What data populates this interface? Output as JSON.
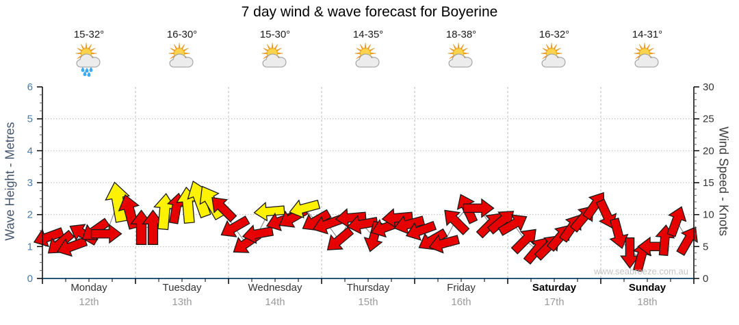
{
  "title": "7 day wind & wave forecast for Boyerine",
  "watermark": "www.seabreeze.com.au",
  "days": [
    {
      "name": "Monday",
      "date": "12th",
      "temp": "15-32°",
      "icon": "sun-cloud-rain",
      "weekend": false
    },
    {
      "name": "Tuesday",
      "date": "13th",
      "temp": "16-30°",
      "icon": "sun-cloud",
      "weekend": false
    },
    {
      "name": "Wednesday",
      "date": "14th",
      "temp": "15-30°",
      "icon": "sun-cloud",
      "weekend": false
    },
    {
      "name": "Thursday",
      "date": "15th",
      "temp": "14-35°",
      "icon": "sun-cloud",
      "weekend": false
    },
    {
      "name": "Friday",
      "date": "16th",
      "temp": "18-38°",
      "icon": "sun-cloud",
      "weekend": false
    },
    {
      "name": "Saturday",
      "date": "17th",
      "temp": "16-32°",
      "icon": "sun-cloud",
      "weekend": true
    },
    {
      "name": "Sunday",
      "date": "18th",
      "temp": "14-31°",
      "icon": "sun-cloud",
      "weekend": true
    }
  ],
  "axes": {
    "wave": {
      "title": "Wave Height - Metres",
      "min": 0,
      "max": 6,
      "major_ticks": [
        0,
        1,
        2,
        3,
        4,
        5,
        6
      ],
      "minor_step": 0.25
    },
    "wind": {
      "title": "Wind Speed - Knots",
      "min": 0,
      "max": 30,
      "major_ticks": [
        0,
        5,
        10,
        15,
        20,
        25,
        30
      ],
      "minor_step": 1
    }
  },
  "colors": {
    "arrow_red": "#e60000",
    "arrow_yellow": "#fff200",
    "arrow_outline": "#1a1a1a",
    "speed_line": "#8c8c8c",
    "grid": "#b8b8b8",
    "x_axis_line": "#27597d",
    "side_axis_line": "#000000",
    "wave_tick_text": "#4878a8",
    "wind_tick_text": "#333333",
    "watermark_text": "#c4c4c4"
  },
  "chart_data": {
    "type": "wind-arrow-timeseries",
    "title": "7 day wind & wave forecast for Boyerine",
    "categories": [
      "Monday 12th",
      "Tuesday 13th",
      "Wednesday 14th",
      "Thursday 15th",
      "Friday 16th",
      "Saturday 17th",
      "Sunday 18th"
    ],
    "arrows_per_day": 8,
    "ylabel_left": "Wave Height - Metres",
    "ylabel_right": "Wind Speed - Knots",
    "ylim_left": [
      0,
      6
    ],
    "ylim_right": [
      0,
      30
    ],
    "grid": "dotted horizontal at each metre, dashed vertical at day boundaries",
    "legend_note": "arrow position = wind speed in knots, arrow rotation = wind direction (0 = up/N, 90 = right/E), colour red or yellow",
    "arrows": [
      {
        "kn": 6.5,
        "dir": 250,
        "c": "red"
      },
      {
        "kn": 5.5,
        "dir": 230,
        "c": "red"
      },
      {
        "kn": 5.0,
        "dir": 250,
        "c": "red"
      },
      {
        "kn": 7.0,
        "dir": 300,
        "c": "red"
      },
      {
        "kn": 7.5,
        "dir": 235,
        "c": "red"
      },
      {
        "kn": 7.0,
        "dir": 90,
        "c": "red"
      },
      {
        "kn": 12.0,
        "dir": 350,
        "c": "yellow",
        "len": 58
      },
      {
        "kn": 10.5,
        "dir": 345,
        "c": "red",
        "len": 50
      },
      {
        "kn": 8.0,
        "dir": 0,
        "c": "red",
        "len": 50
      },
      {
        "kn": 8.0,
        "dir": 0,
        "c": "red",
        "len": 50
      },
      {
        "kn": 10.5,
        "dir": 5,
        "c": "yellow",
        "len": 52
      },
      {
        "kn": 11.0,
        "dir": 10,
        "c": "red"
      },
      {
        "kn": 11.5,
        "dir": 355,
        "c": "yellow",
        "len": 52
      },
      {
        "kn": 12.5,
        "dir": 340,
        "c": "yellow",
        "len": 54
      },
      {
        "kn": 12.0,
        "dir": 330,
        "c": "yellow",
        "len": 52
      },
      {
        "kn": 11.0,
        "dir": 315,
        "c": "red"
      },
      {
        "kn": 8.0,
        "dir": 240,
        "c": "red"
      },
      {
        "kn": 5.5,
        "dir": 235,
        "c": "red"
      },
      {
        "kn": 7.0,
        "dir": 260,
        "c": "red"
      },
      {
        "kn": 10.5,
        "dir": 265,
        "c": "yellow"
      },
      {
        "kn": 9.0,
        "dir": 250,
        "c": "red"
      },
      {
        "kn": 9.5,
        "dir": 240,
        "c": "red"
      },
      {
        "kn": 11.0,
        "dir": 255,
        "c": "yellow"
      },
      {
        "kn": 9.0,
        "dir": 240,
        "c": "red"
      },
      {
        "kn": 8.5,
        "dir": 250,
        "c": "red"
      },
      {
        "kn": 6.0,
        "dir": 230,
        "c": "red"
      },
      {
        "kn": 9.5,
        "dir": 265,
        "c": "red"
      },
      {
        "kn": 8.5,
        "dir": 260,
        "c": "red"
      },
      {
        "kn": 6.5,
        "dir": 195,
        "c": "red"
      },
      {
        "kn": 8.0,
        "dir": 250,
        "c": "red"
      },
      {
        "kn": 9.5,
        "dir": 265,
        "c": "red"
      },
      {
        "kn": 8.5,
        "dir": 255,
        "c": "red"
      },
      {
        "kn": 7.5,
        "dir": 250,
        "c": "red"
      },
      {
        "kn": 6.0,
        "dir": 240,
        "c": "red"
      },
      {
        "kn": 5.5,
        "dir": 255,
        "c": "red"
      },
      {
        "kn": 9.0,
        "dir": 315,
        "c": "red"
      },
      {
        "kn": 11.0,
        "dir": 335,
        "c": "red"
      },
      {
        "kn": 11.0,
        "dir": 90,
        "c": "red"
      },
      {
        "kn": 8.5,
        "dir": 45,
        "c": "red"
      },
      {
        "kn": 9.0,
        "dir": 50,
        "c": "red"
      },
      {
        "kn": 8.5,
        "dir": 60,
        "c": "red"
      },
      {
        "kn": 6.0,
        "dir": 45,
        "c": "red"
      },
      {
        "kn": 4.5,
        "dir": 40,
        "c": "red"
      },
      {
        "kn": 5.0,
        "dir": 45,
        "c": "red"
      },
      {
        "kn": 6.5,
        "dir": 40,
        "c": "red"
      },
      {
        "kn": 8.0,
        "dir": 35,
        "c": "red"
      },
      {
        "kn": 9.5,
        "dir": 40,
        "c": "red"
      },
      {
        "kn": 11.5,
        "dir": 35,
        "c": "red"
      },
      {
        "kn": 10.0,
        "dir": 155,
        "c": "red"
      },
      {
        "kn": 7.0,
        "dir": 165,
        "c": "red"
      },
      {
        "kn": 4.0,
        "dir": 180,
        "c": "red"
      },
      {
        "kn": 3.5,
        "dir": 15,
        "c": "red"
      },
      {
        "kn": 5.0,
        "dir": 270,
        "c": "red"
      },
      {
        "kn": 6.0,
        "dir": 5,
        "c": "red"
      },
      {
        "kn": 9.0,
        "dir": 20,
        "c": "red"
      },
      {
        "kn": 6.0,
        "dir": 30,
        "c": "red"
      }
    ]
  }
}
